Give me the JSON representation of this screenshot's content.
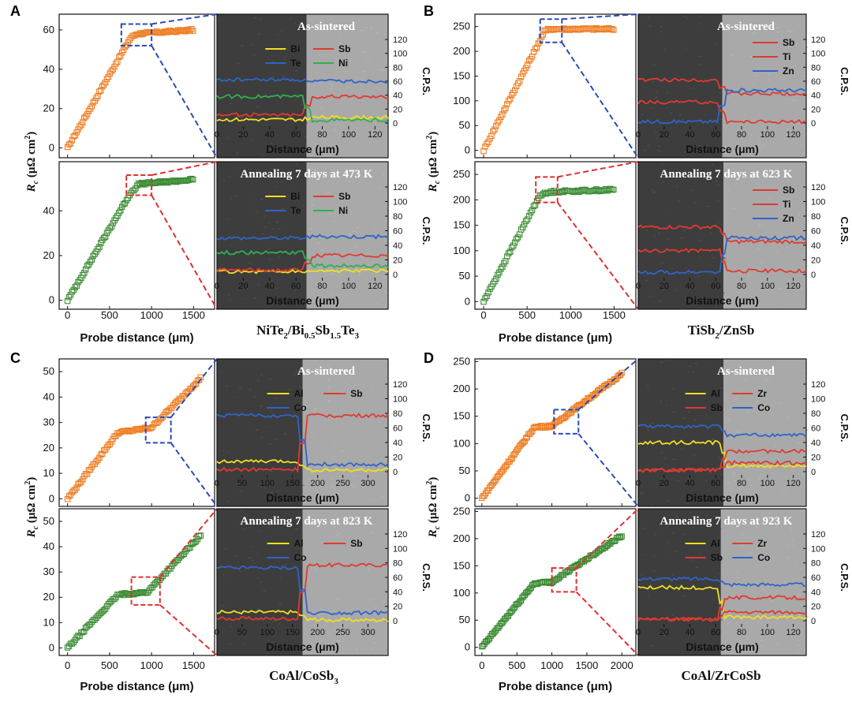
{
  "figure": {
    "panel_letters": [
      "A",
      "B",
      "C",
      "D"
    ],
    "y_axis_label_sym": "R",
    "y_axis_label_sub": "c",
    "y_axis_label_unit": " (μΩ cm",
    "y_axis_label_sup": "2",
    "y_axis_label_close": ")",
    "x_axis_label": "Probe distance (μm)",
    "sem_x_label": "Distance (μm)",
    "cps_label": "C.P.S.",
    "cps_ticks": [
      0,
      20,
      40,
      60,
      80,
      100,
      120
    ]
  },
  "colors": {
    "as_sintered": "#ee7d22",
    "annealed": "#3a8a32",
    "bi": "#f0e020",
    "sb": "#e03a30",
    "te": "#2f64c8",
    "ni": "#30b050",
    "ti": "#e03a30",
    "zn": "#2f64c8",
    "al": "#f0e020",
    "co_line": "#2f64c8",
    "zr": "#e03a30",
    "co_green": "#30b050",
    "zoom_blue": "#2b4bb5",
    "zoom_red": "#e03030"
  },
  "chart_data": [
    {
      "panel": "A",
      "type": "scatter",
      "interface": {
        "a": "NiTe",
        "a_sub": "2",
        "b1": "/Bi",
        "b_sub1": "0.5",
        "b2": "Sb",
        "b_sub2": "1.5",
        "b3": "Te",
        "b_sub3": "3"
      },
      "xlabel": "Probe distance (μm)",
      "xlim": [
        -100,
        1750
      ],
      "xticks": [
        0,
        500,
        1000,
        1500
      ],
      "subplots": [
        {
          "condition": "As-sintered",
          "ylabel": "Rc (μΩ cm2)",
          "ylim": [
            -5,
            68
          ],
          "yticks": [
            0,
            20,
            40,
            60
          ],
          "profile": [
            [
              0,
              0
            ],
            [
              750,
              56
            ],
            [
              820,
              58
            ],
            [
              1500,
              60
            ]
          ],
          "zoom_box": {
            "x": [
              640,
              1000
            ],
            "y": [
              52,
              63
            ]
          },
          "eds": {
            "xlim": [
              0,
              130
            ],
            "xticks": [
              0,
              20,
              40,
              60,
              80,
              100,
              120
            ],
            "interface_at": 68,
            "legend": [
              "Bi",
              "Sb",
              "Te",
              "Ni"
            ],
            "lines": [
              {
                "element": "Bi",
                "left": 5,
                "right": 8
              },
              {
                "element": "Sb",
                "left": 12,
                "right": 38
              },
              {
                "element": "Te",
                "left": 62,
                "right": 60
              },
              {
                "element": "Ni",
                "left": 38,
                "right": 4
              }
            ]
          }
        },
        {
          "condition": "Annealing 7 days at 473 K",
          "ylabel": "Rc (μΩ cm2)",
          "ylim": [
            -4,
            62
          ],
          "yticks": [
            0,
            20,
            40
          ],
          "profile": [
            [
              0,
              0
            ],
            [
              750,
              48
            ],
            [
              850,
              52
            ],
            [
              1500,
              54
            ]
          ],
          "zoom_box": {
            "x": [
              700,
              1000
            ],
            "y": [
              47,
              56
            ]
          },
          "eds": {
            "xlim": [
              0,
              130
            ],
            "xticks": [
              0,
              20,
              40,
              60,
              80,
              100,
              120
            ],
            "interface_at": 68,
            "legend": [
              "Bi",
              "Sb",
              "Te",
              "Ni"
            ],
            "lines": [
              {
                "element": "Bi",
                "left": 4,
                "right": 5
              },
              {
                "element": "Sb",
                "left": 6,
                "right": 26
              },
              {
                "element": "Te",
                "left": 50,
                "right": 52
              },
              {
                "element": "Ni",
                "left": 30,
                "right": 12
              }
            ]
          }
        }
      ]
    },
    {
      "panel": "B",
      "type": "scatter",
      "interface": {
        "a": "TiSb",
        "a_sub": "2",
        "b1": "/ZnSb",
        "b_sub1": "",
        "b2": "",
        "b_sub2": "",
        "b3": "",
        "b_sub3": ""
      },
      "xlabel": "Probe distance (μm)",
      "xlim": [
        -100,
        1750
      ],
      "xticks": [
        0,
        500,
        1000,
        1500
      ],
      "subplots": [
        {
          "condition": "As-sintered",
          "ylabel": "Rc (μΩ cm2)",
          "ylim": [
            -15,
            275
          ],
          "yticks": [
            0,
            50,
            100,
            150,
            200,
            250
          ],
          "profile": [
            [
              0,
              0
            ],
            [
              700,
              240
            ],
            [
              750,
              245
            ],
            [
              1500,
              245
            ]
          ],
          "zoom_box": {
            "x": [
              650,
              900
            ],
            "y": [
              218,
              265
            ]
          },
          "eds": {
            "xlim": [
              0,
              130
            ],
            "xticks": [
              0,
              20,
              40,
              60,
              80,
              100,
              120
            ],
            "interface_at": 65,
            "legend": [
              "Sb",
              "Ti",
              "Zn"
            ],
            "lines": [
              {
                "element": "Sb",
                "left": 62,
                "right": 42
              },
              {
                "element": "Ti",
                "left": 30,
                "right": 2
              },
              {
                "element": "Zn",
                "left": 2,
                "right": 47
              }
            ]
          }
        },
        {
          "condition": "Annealing 7 days at 623 K",
          "ylabel": "Rc (μΩ cm2)",
          "ylim": [
            -15,
            275
          ],
          "yticks": [
            0,
            50,
            100,
            150,
            200,
            250
          ],
          "profile": [
            [
              0,
              0
            ],
            [
              650,
              210
            ],
            [
              800,
              216
            ],
            [
              1500,
              220
            ]
          ],
          "zoom_box": {
            "x": [
              600,
              850
            ],
            "y": [
              195,
              245
            ]
          },
          "eds": {
            "xlim": [
              0,
              130
            ],
            "xticks": [
              0,
              20,
              40,
              60,
              80,
              100,
              120
            ],
            "interface_at": 66,
            "legend": [
              "Sb",
              "Ti",
              "Zn"
            ],
            "lines": [
              {
                "element": "Sb",
                "left": 65,
                "right": 45
              },
              {
                "element": "Ti",
                "left": 33,
                "right": 5
              },
              {
                "element": "Zn",
                "left": 3,
                "right": 50
              }
            ]
          }
        }
      ]
    },
    {
      "panel": "C",
      "type": "scatter",
      "interface": {
        "a": "CoAl/CoSb",
        "a_sub": "3",
        "b1": "",
        "b_sub1": "",
        "b2": "",
        "b_sub2": "",
        "b3": "",
        "b_sub3": ""
      },
      "xlabel": "Probe distance (μm)",
      "xlim": [
        -100,
        1750
      ],
      "xticks": [
        0,
        500,
        1000,
        1500
      ],
      "subplots": [
        {
          "condition": "As-sintered",
          "ylabel": "Rc (μΩ cm2)",
          "ylim": [
            -3,
            55
          ],
          "yticks": [
            0,
            10,
            20,
            30,
            40,
            50
          ],
          "profile": [
            [
              0,
              0
            ],
            [
              600,
              26
            ],
            [
              1000,
              28
            ],
            [
              1600,
              48
            ]
          ],
          "zoom_box": {
            "x": [
              930,
              1230
            ],
            "y": [
              22,
              32
            ]
          },
          "eds": {
            "xlim": [
              0,
              340
            ],
            "xticks": [
              0,
              50,
              100,
              150,
              200,
              250,
              300
            ],
            "interface_at": 170,
            "legend": [
              "Al",
              "Sb",
              "Co"
            ],
            "lines": [
              {
                "element": "Al",
                "left": 14,
                "right": 2
              },
              {
                "element": "Sb",
                "left": 3,
                "right": 77
              },
              {
                "element": "Co",
                "left": 77,
                "right": 10
              }
            ]
          }
        },
        {
          "condition": "Annealing 7 days at 823 K",
          "ylabel": "Rc (μΩ cm2)",
          "ylim": [
            -3,
            55
          ],
          "yticks": [
            0,
            10,
            20,
            30,
            40,
            50
          ],
          "profile": [
            [
              0,
              0
            ],
            [
              600,
              21
            ],
            [
              950,
              22
            ],
            [
              1600,
              45
            ]
          ],
          "zoom_box": {
            "x": [
              760,
              1100
            ],
            "y": [
              17,
              28
            ]
          },
          "eds": {
            "xlim": [
              0,
              340
            ],
            "xticks": [
              0,
              50,
              100,
              150,
              200,
              250,
              300
            ],
            "interface_at": 170,
            "legend": [
              "Al",
              "Sb",
              "Co"
            ],
            "lines": [
              {
                "element": "Al",
                "left": 12,
                "right": 1
              },
              {
                "element": "Sb",
                "left": 3,
                "right": 77
              },
              {
                "element": "Co",
                "left": 73,
                "right": 11
              }
            ]
          }
        }
      ]
    },
    {
      "panel": "D",
      "type": "scatter",
      "interface": {
        "a": "CoAl/ZrCoSb",
        "a_sub": "",
        "b1": "",
        "b_sub1": "",
        "b2": "",
        "b_sub2": "",
        "b3": "",
        "b_sub3": ""
      },
      "xlabel": "Probe distance (μm)",
      "xlim": [
        -100,
        2200
      ],
      "xticks": [
        0,
        500,
        1000,
        1500,
        2000
      ],
      "subplots": [
        {
          "condition": "As-sintered",
          "ylabel": "Rc (μΩ cm2)",
          "ylim": [
            -15,
            255
          ],
          "yticks": [
            0,
            50,
            100,
            150,
            200,
            250
          ],
          "profile": [
            [
              0,
              0
            ],
            [
              750,
              130
            ],
            [
              1000,
              132
            ],
            [
              2000,
              228
            ]
          ],
          "zoom_box": {
            "x": [
              1030,
              1380
            ],
            "y": [
              118,
              162
            ]
          },
          "eds": {
            "xlim": [
              0,
              130
            ],
            "xticks": [
              0,
              20,
              40,
              60,
              80,
              100,
              120
            ],
            "interface_at": 66,
            "legend": [
              "Al",
              "Zr",
              "Sb",
              "Co"
            ],
            "lines": [
              {
                "element": "Al",
                "left": 40,
                "right": 8
              },
              {
                "element": "Zr",
                "left": 2,
                "right": 12
              },
              {
                "element": "Sb",
                "left": 2,
                "right": 28
              },
              {
                "element": "Co",
                "left": 62,
                "right": 50
              }
            ]
          }
        },
        {
          "condition": "Annealing 7 days at 923 K",
          "ylabel": "Rc (μΩ cm2)",
          "ylim": [
            -15,
            255
          ],
          "yticks": [
            0,
            50,
            100,
            150,
            200,
            250
          ],
          "profile": [
            [
              0,
              0
            ],
            [
              750,
              118
            ],
            [
              1000,
              120
            ],
            [
              2000,
              206
            ]
          ],
          "zoom_box": {
            "x": [
              1000,
              1350
            ],
            "y": [
              102,
              146
            ]
          },
          "eds": {
            "xlim": [
              0,
              130
            ],
            "xticks": [
              0,
              20,
              40,
              60,
              80,
              100,
              120
            ],
            "interface_at": 64,
            "legend": [
              "Al",
              "Zr",
              "Sb",
              "Co"
            ],
            "lines": [
              {
                "element": "Al",
                "left": 46,
                "right": 5
              },
              {
                "element": "Zr",
                "left": 2,
                "right": 12
              },
              {
                "element": "Sb",
                "left": 2,
                "right": 32
              },
              {
                "element": "Co",
                "left": 58,
                "right": 50
              }
            ]
          }
        }
      ]
    }
  ]
}
